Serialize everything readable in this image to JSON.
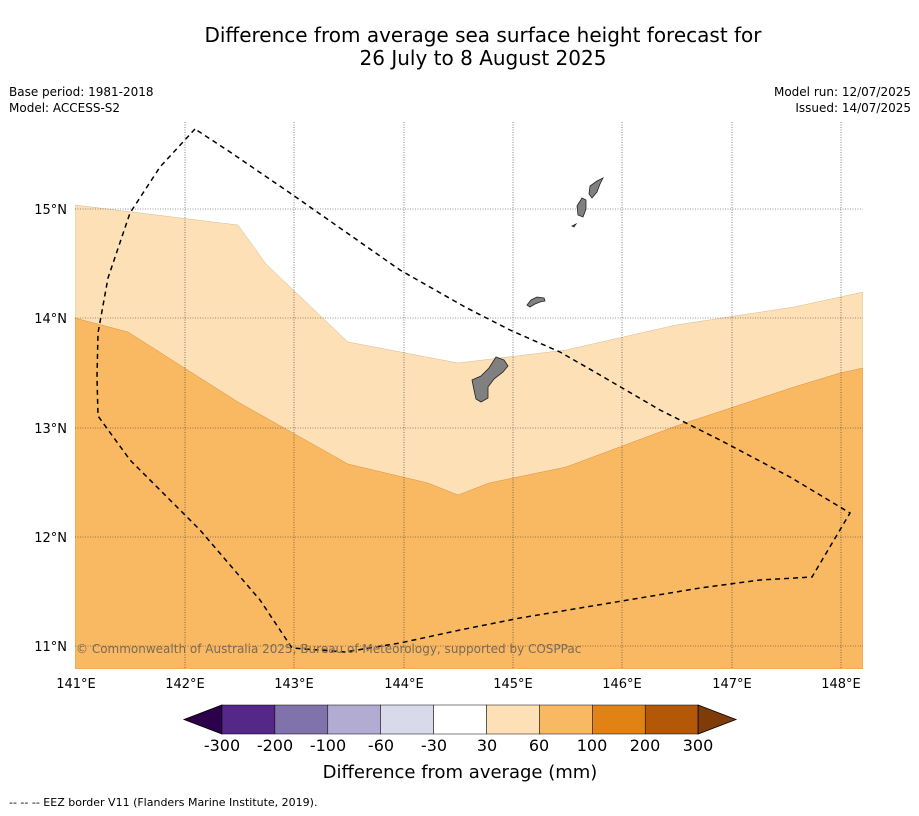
{
  "title": {
    "line1": "Difference from average sea surface height forecast for",
    "line2": "26 July to 8 August 2025"
  },
  "meta_left": {
    "base_period": "Base period: 1981-2018",
    "model": "Model: ACCESS-S2"
  },
  "meta_right": {
    "model_run": "Model run: 12/07/2025",
    "issued": "Issued: 14/07/2025"
  },
  "copyright": "© Commonwealth of Australia 2025, Bureau of Meteorology, supported by COSPPac",
  "footnote": "--  --  -- EEZ border V11 (Flanders Marine Institute, 2019).",
  "map": {
    "lon_range": [
      141.0,
      148.2
    ],
    "lat_range": [
      10.8,
      15.8
    ],
    "lon_ticks": [
      141,
      142,
      143,
      144,
      145,
      146,
      147,
      148
    ],
    "lat_ticks": [
      11,
      12,
      13,
      14,
      15
    ],
    "lon_labels": [
      "141°E",
      "142°E",
      "143°E",
      "144°E",
      "145°E",
      "146°E",
      "147°E",
      "148°E"
    ],
    "lat_labels": [
      "11°N",
      "12°N",
      "13°N",
      "14°N",
      "15°N"
    ],
    "colors": {
      "band_60_100": "#f9b862",
      "band_30_60": "#fde0b6",
      "band_neutral": "#ffffff",
      "land": "#808080"
    }
  },
  "legend": {
    "title": "Difference from average (mm)",
    "tick_labels": [
      "-300",
      "-200",
      "-100",
      "-60",
      "-30",
      "30",
      "60",
      "100",
      "200",
      "300"
    ],
    "colors": [
      "#2d004b",
      "#542788",
      "#8073ac",
      "#b2abd2",
      "#d8daeb",
      "#ffffff",
      "#fde0b6",
      "#f9b862",
      "#e08214",
      "#b35806",
      "#7f3b08"
    ]
  }
}
